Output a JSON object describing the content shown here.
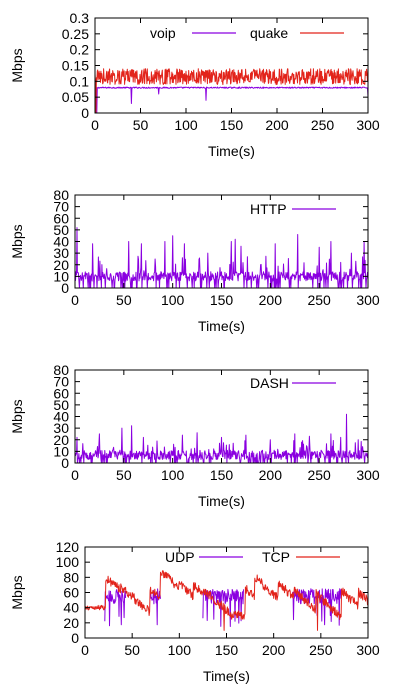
{
  "chart_data": [
    {
      "type": "line",
      "xlabel": "Time(s)",
      "ylabel": "Mbps",
      "xlim": [
        0,
        300
      ],
      "ylim": [
        0,
        0.3
      ],
      "xticks": [
        "0",
        "50",
        "100",
        "150",
        "200",
        "250",
        "300"
      ],
      "yticks": [
        "0",
        "0.05",
        "0.1",
        "0.15",
        "0.2",
        "0.25",
        "0.3"
      ],
      "legend_position": "top",
      "series": [
        {
          "name": "voip",
          "color": "#8a00e0",
          "pattern": "steady",
          "baseline": 0.08,
          "noise": 0.002,
          "spikes": [
            [
              2,
              0.0
            ],
            [
              40,
              0.03
            ],
            [
              70,
              0.06
            ],
            [
              122,
              0.04
            ],
            [
              300,
              0.05
            ]
          ]
        },
        {
          "name": "quake",
          "color": "#e2231a",
          "pattern": "noisy",
          "baseline": 0.115,
          "noise": 0.025,
          "spikes": [
            [
              1,
              0.0
            ]
          ]
        }
      ]
    },
    {
      "type": "line",
      "xlabel": "Time(s)",
      "ylabel": "Mbps",
      "xlim": [
        0,
        300
      ],
      "ylim": [
        0,
        80
      ],
      "xticks": [
        "0",
        "50",
        "100",
        "150",
        "200",
        "250",
        "300"
      ],
      "yticks": [
        "0",
        "10",
        "20",
        "30",
        "40",
        "50",
        "60",
        "70",
        "80"
      ],
      "legend_position": "top-right",
      "series": [
        {
          "name": "HTTP",
          "color": "#8a00e0",
          "pattern": "bursty",
          "baseline": 10,
          "noise": 4,
          "spikes": [
            [
              2,
              52
            ],
            [
              18,
              38
            ],
            [
              55,
              40
            ],
            [
              68,
              38
            ],
            [
              92,
              40
            ],
            [
              100,
              45
            ],
            [
              112,
              38
            ],
            [
              136,
              30
            ],
            [
              160,
              40
            ],
            [
              164,
              42
            ],
            [
              170,
              36
            ],
            [
              190,
              20
            ],
            [
              205,
              38
            ],
            [
              228,
              46
            ],
            [
              250,
              35
            ],
            [
              262,
              40
            ],
            [
              272,
              22
            ],
            [
              283,
              30
            ],
            [
              296,
              40
            ]
          ]
        }
      ]
    },
    {
      "type": "line",
      "xlabel": "Time(s)",
      "ylabel": "Mbps",
      "xlim": [
        0,
        300
      ],
      "ylim": [
        0,
        80
      ],
      "xticks": [
        "0",
        "50",
        "100",
        "150",
        "200",
        "250",
        "300"
      ],
      "yticks": [
        "0",
        "10",
        "20",
        "30",
        "40",
        "50",
        "60",
        "70",
        "80"
      ],
      "legend_position": "top-right",
      "series": [
        {
          "name": "DASH",
          "color": "#8a00e0",
          "pattern": "bursty",
          "baseline": 7,
          "noise": 4,
          "spikes": [
            [
              2,
              22
            ],
            [
              25,
              25
            ],
            [
              48,
              30
            ],
            [
              58,
              32
            ],
            [
              70,
              22
            ],
            [
              110,
              24
            ],
            [
              125,
              26
            ],
            [
              150,
              22
            ],
            [
              175,
              24
            ],
            [
              200,
              20
            ],
            [
              225,
              25
            ],
            [
              240,
              23
            ],
            [
              262,
              25
            ],
            [
              272,
              22
            ],
            [
              278,
              42
            ],
            [
              290,
              20
            ]
          ]
        }
      ]
    },
    {
      "type": "line",
      "xlabel": "Time(s)",
      "ylabel": "Mbps",
      "xlim": [
        0,
        300
      ],
      "ylim": [
        0,
        120
      ],
      "xticks": [
        "0",
        "50",
        "100",
        "150",
        "200",
        "250",
        "300"
      ],
      "yticks": [
        "0",
        "20",
        "40",
        "60",
        "80",
        "100",
        "120"
      ],
      "legend_position": "top",
      "series": [
        {
          "name": "UDP",
          "color": "#8a00e0",
          "pattern": "bursts",
          "baseline": 55,
          "noise": 10,
          "segments": [
            [
              21,
              43
            ],
            [
              69,
              80
            ],
            [
              125,
              168
            ],
            [
              220,
              272
            ]
          ]
        },
        {
          "name": "TCP",
          "color": "#e2231a",
          "pattern": "sawtooth",
          "baseline": 40,
          "noise": 6,
          "peaks": [
            [
              22,
              80
            ],
            [
              38,
              68
            ],
            [
              69,
              65
            ],
            [
              80,
              88
            ],
            [
              100,
              72
            ],
            [
              115,
              70
            ],
            [
              125,
              64
            ],
            [
              170,
              66
            ],
            [
              180,
              80
            ],
            [
              205,
              72
            ],
            [
              222,
              62
            ],
            [
              245,
              58
            ],
            [
              272,
              62
            ],
            [
              290,
              60
            ]
          ]
        }
      ]
    }
  ]
}
